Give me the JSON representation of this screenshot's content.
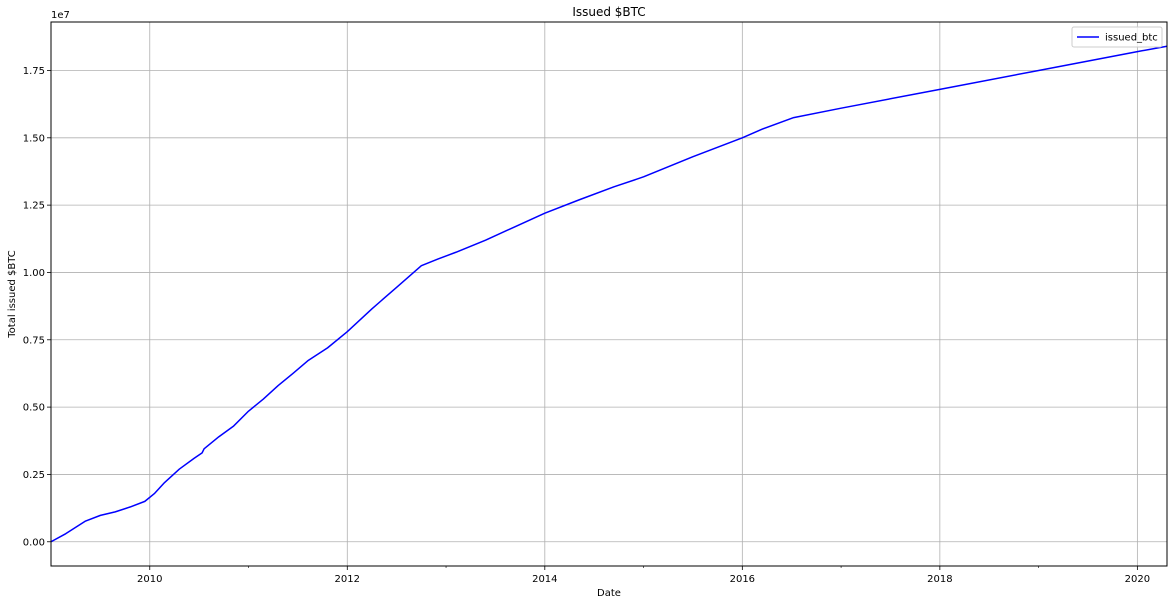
{
  "chart_data": {
    "type": "line",
    "title": "Issued $BTC",
    "xlabel": "Date",
    "ylabel": "Total issued $BTC",
    "y_offset_label": "1e7",
    "y_scale": 10000000,
    "xlim": [
      2009.0,
      2020.3
    ],
    "ylim": [
      -0.09,
      1.93
    ],
    "x_ticks": [
      2010,
      2012,
      2014,
      2016,
      2018,
      2020
    ],
    "x_tick_labels": [
      "2010",
      "2012",
      "2014",
      "2016",
      "2018",
      "2020"
    ],
    "x_minor_ticks": [
      2011,
      2013,
      2015,
      2017,
      2019
    ],
    "y_ticks": [
      0,
      0.25,
      0.5,
      0.75,
      1.0,
      1.25,
      1.5,
      1.75
    ],
    "y_tick_labels": [
      "0.00",
      "0.25",
      "0.50",
      "0.75",
      "1.00",
      "1.25",
      "1.50",
      "1.75"
    ],
    "grid": true,
    "legend_position": "top-right",
    "series": [
      {
        "name": "issued_btc",
        "color": "#0000ff",
        "x": [
          2009.0,
          2009.15,
          2009.35,
          2009.5,
          2009.65,
          2009.8,
          2009.95,
          2010.05,
          2010.15,
          2010.3,
          2010.45,
          2010.53,
          2010.55,
          2010.7,
          2010.85,
          2011.0,
          2011.15,
          2011.3,
          2011.45,
          2011.6,
          2011.8,
          2012.0,
          2012.25,
          2012.5,
          2012.75,
          2012.92,
          2013.1,
          2013.4,
          2013.7,
          2014.0,
          2014.35,
          2014.7,
          2015.0,
          2015.5,
          2016.0,
          2016.2,
          2016.52,
          2017.0,
          2018.0,
          2019.0,
          2020.0,
          2020.3
        ],
        "y": [
          0.0,
          0.03,
          0.077,
          0.098,
          0.111,
          0.129,
          0.15,
          0.18,
          0.22,
          0.27,
          0.31,
          0.33,
          0.345,
          0.39,
          0.43,
          0.485,
          0.53,
          0.58,
          0.625,
          0.672,
          0.72,
          0.78,
          0.865,
          0.945,
          1.025,
          1.05,
          1.075,
          1.12,
          1.17,
          1.22,
          1.27,
          1.318,
          1.355,
          1.43,
          1.5,
          1.532,
          1.575,
          1.61,
          1.68,
          1.75,
          1.82,
          1.84
        ]
      }
    ]
  }
}
